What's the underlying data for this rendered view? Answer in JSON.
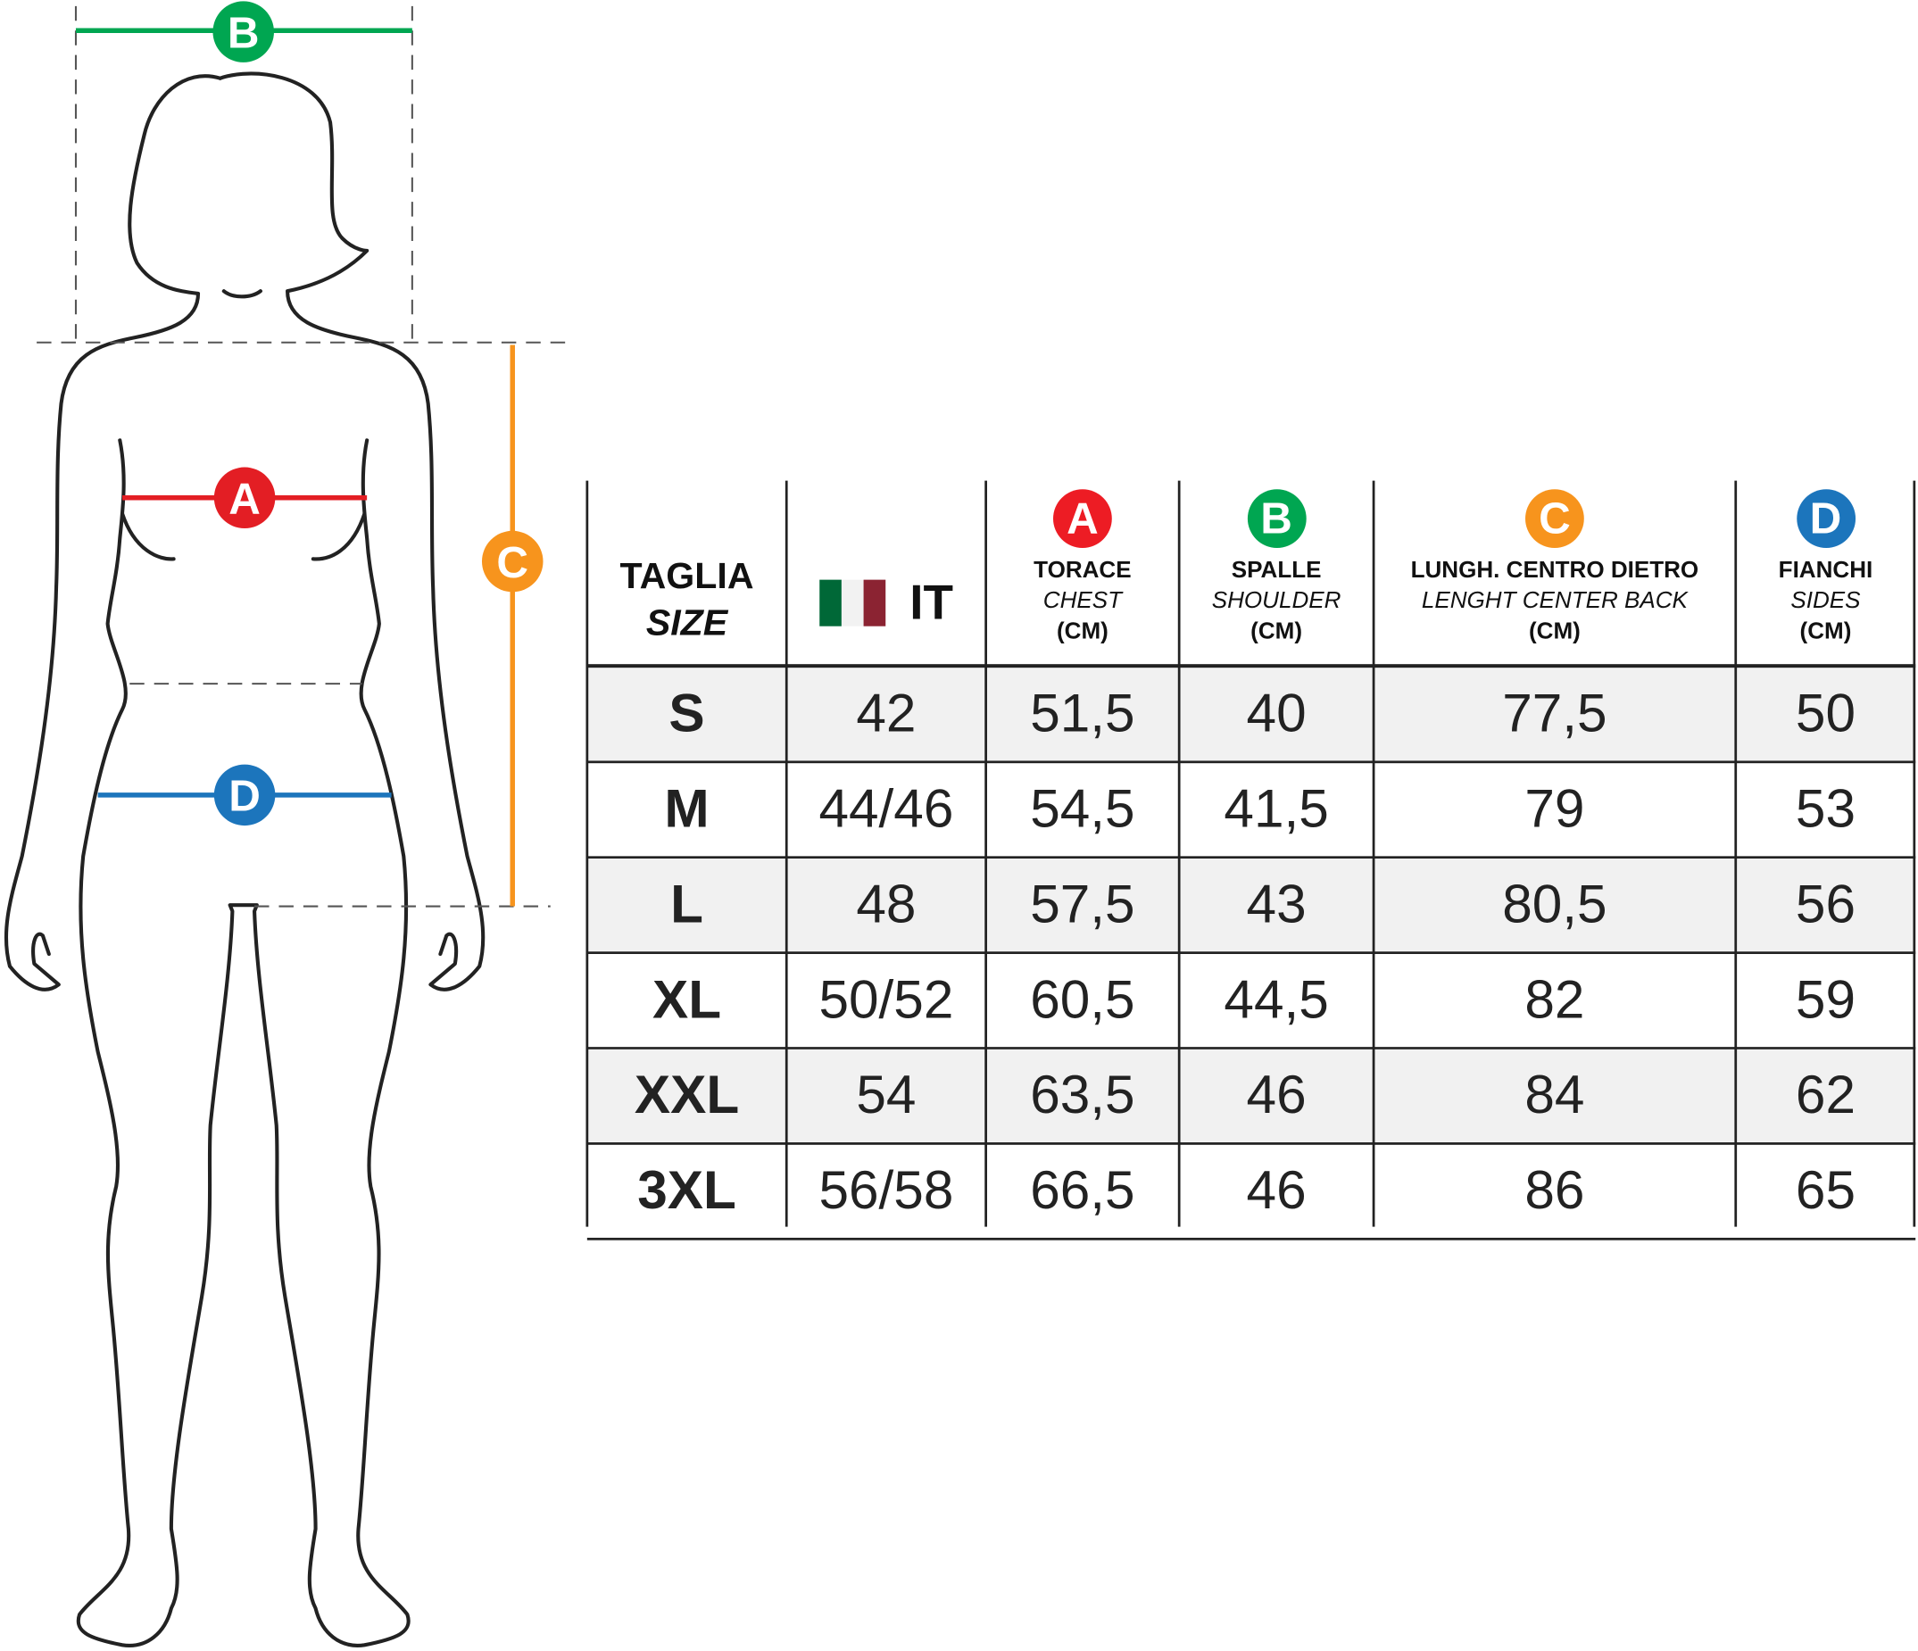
{
  "figure": {
    "markers": [
      {
        "letter": "A",
        "color": "#e31e24"
      },
      {
        "letter": "B",
        "color": "#00a651"
      },
      {
        "letter": "C",
        "color": "#f7941d"
      },
      {
        "letter": "D",
        "color": "#1c75bc"
      }
    ]
  },
  "table": {
    "headers": {
      "size": {
        "line1": "TAGLIA",
        "line2": "SIZE"
      },
      "it": {
        "label": "IT",
        "flag_colors": [
          "#006837",
          "#f2f2f2",
          "#8b2332"
        ]
      },
      "chest": {
        "badge": "A",
        "color": "#ed1c24",
        "line1": "TORACE",
        "line2": "CHEST",
        "line3": "(CM)"
      },
      "shoulder": {
        "badge": "B",
        "color": "#00a651",
        "line1": "SPALLE",
        "line2": "SHOULDER",
        "line3": "(CM)"
      },
      "length": {
        "badge": "C",
        "color": "#f7941d",
        "line1": "LUNGH. CENTRO DIETRO",
        "line2": "LENGHT CENTER BACK",
        "line3": "(CM)"
      },
      "sides": {
        "badge": "D",
        "color": "#1c75bc",
        "line1": "FIANCHI",
        "line2": "SIDES",
        "line3": "(CM)"
      }
    },
    "rows": [
      {
        "size": "S",
        "it": "42",
        "chest": "51,5",
        "shoulder": "40",
        "length": "77,5",
        "sides": "50"
      },
      {
        "size": "M",
        "it": "44/46",
        "chest": "54,5",
        "shoulder": "41,5",
        "length": "79",
        "sides": "53"
      },
      {
        "size": "L",
        "it": "48",
        "chest": "57,5",
        "shoulder": "43",
        "length": "80,5",
        "sides": "56"
      },
      {
        "size": "XL",
        "it": "50/52",
        "chest": "60,5",
        "shoulder": "44,5",
        "length": "82",
        "sides": "59"
      },
      {
        "size": "XXL",
        "it": "54",
        "chest": "63,5",
        "shoulder": "46",
        "length": "84",
        "sides": "62"
      },
      {
        "size": "3XL",
        "it": "56/58",
        "chest": "66,5",
        "shoulder": "46",
        "length": "86",
        "sides": "65"
      }
    ]
  }
}
